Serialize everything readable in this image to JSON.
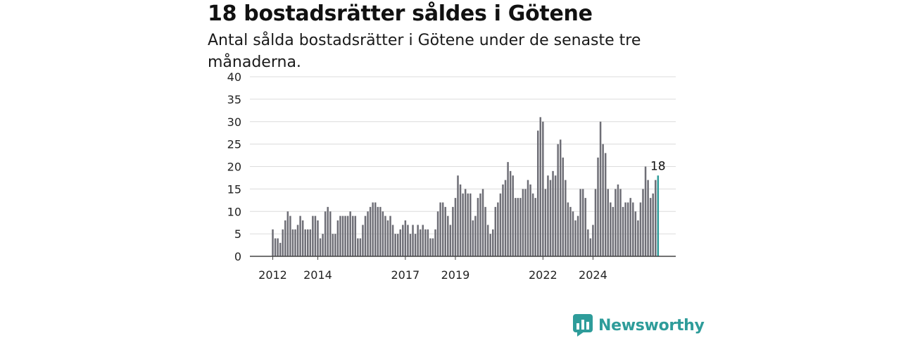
{
  "chart_data": {
    "type": "bar",
    "title": "18 bostadsrätter såldes i Götene",
    "subtitle": "Antal sålda bostadsrätter i Götene under de senaste tre månaderna.",
    "ylim": [
      0,
      40
    ],
    "yticks": [
      0,
      5,
      10,
      15,
      20,
      25,
      30,
      35,
      40
    ],
    "xticks": [
      "2012",
      "2014",
      "2017",
      "2019",
      "2022",
      "2024"
    ],
    "xtick_index": [
      0,
      18,
      53,
      73,
      108,
      128
    ],
    "grid": true,
    "bar_color": "#6e6e76",
    "highlight_color": "#2e9c9a",
    "highlight_label": "18",
    "values": [
      6,
      4,
      4,
      3,
      6,
      8,
      10,
      9,
      6,
      6,
      7,
      9,
      8,
      6,
      6,
      6,
      9,
      9,
      8,
      4,
      5,
      10,
      11,
      10,
      5,
      5,
      8,
      9,
      9,
      9,
      9,
      10,
      9,
      9,
      4,
      4,
      7,
      9,
      10,
      11,
      12,
      12,
      11,
      11,
      10,
      9,
      8,
      9,
      7,
      5,
      5,
      6,
      7,
      8,
      7,
      5,
      7,
      5,
      7,
      6,
      7,
      6,
      6,
      4,
      4,
      6,
      10,
      12,
      12,
      11,
      9,
      7,
      11,
      13,
      18,
      16,
      14,
      15,
      14,
      14,
      8,
      9,
      13,
      14,
      15,
      11,
      7,
      5,
      6,
      11,
      12,
      14,
      16,
      17,
      21,
      19,
      18,
      13,
      13,
      13,
      15,
      15,
      17,
      16,
      14,
      13,
      28,
      31,
      30,
      15,
      18,
      17,
      19,
      18,
      25,
      26,
      22,
      17,
      12,
      11,
      10,
      8,
      9,
      15,
      15,
      13,
      6,
      4,
      7,
      15,
      22,
      30,
      25,
      23,
      15,
      12,
      11,
      15,
      16,
      15,
      11,
      12,
      12,
      13,
      12,
      10,
      8,
      12,
      15,
      20,
      17,
      13,
      14,
      17,
      18
    ]
  },
  "brand": {
    "name": "Newsworthy",
    "icon": "bar-chart-speech-bubble-icon"
  }
}
